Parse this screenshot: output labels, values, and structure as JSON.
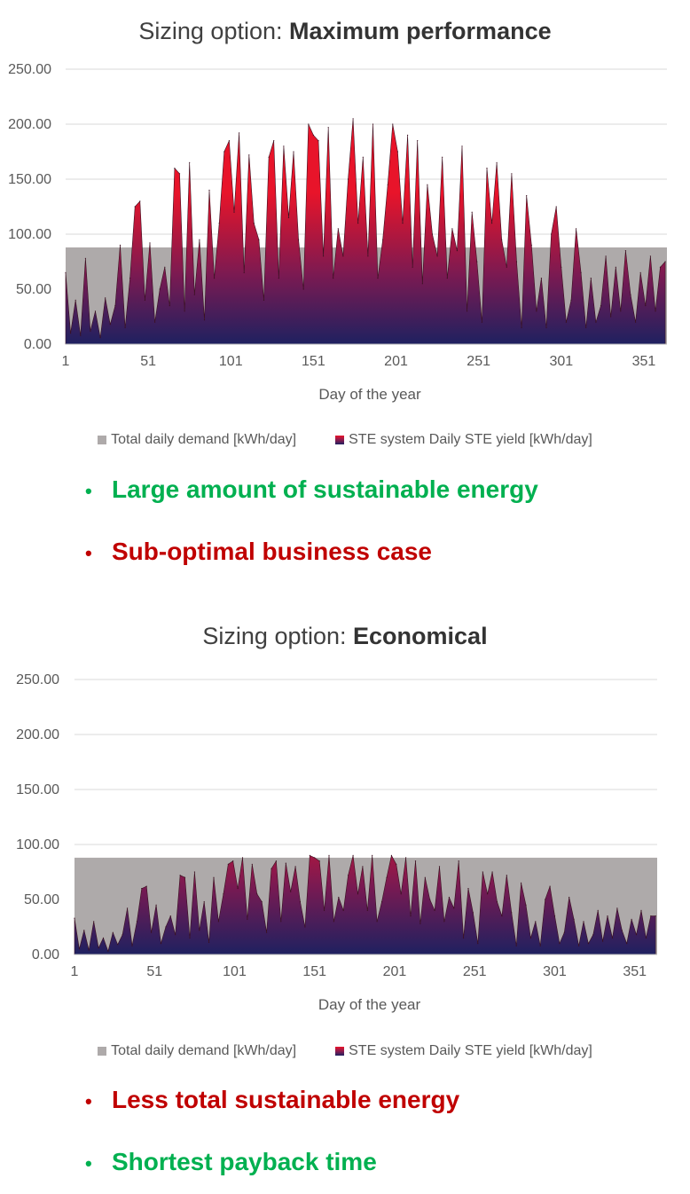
{
  "chart_data": [
    {
      "type": "area",
      "title": "Sizing option: Maximum performance",
      "title_prefix": "Sizing option:",
      "title_bold": "Maximum performance",
      "xlabel": "Day of the year",
      "ylabel": "",
      "ylim": [
        0,
        250
      ],
      "xlim": [
        1,
        365
      ],
      "yticks": [
        "250.00",
        "200.00",
        "150.00",
        "100.00",
        "50.00",
        "0.00"
      ],
      "xticks": [
        "1",
        "51",
        "101",
        "151",
        "201",
        "251",
        "301",
        "351"
      ],
      "grid": true,
      "legend_position": "bottom",
      "series": [
        {
          "name": "Total daily demand [kWh/day]",
          "color": "#aeaaaa",
          "constant": 88
        },
        {
          "name": "STE system Daily STE yield [kWh/day]",
          "color_top": "#e8142a",
          "color_bottom": "#1f2160",
          "x": [
            1,
            4,
            7,
            10,
            13,
            16,
            19,
            22,
            25,
            28,
            31,
            34,
            37,
            40,
            43,
            46,
            49,
            52,
            55,
            58,
            61,
            64,
            67,
            70,
            73,
            76,
            79,
            82,
            85,
            88,
            91,
            94,
            97,
            100,
            103,
            106,
            109,
            112,
            115,
            118,
            121,
            124,
            127,
            130,
            133,
            136,
            139,
            142,
            145,
            148,
            151,
            154,
            157,
            160,
            163,
            166,
            169,
            172,
            175,
            178,
            181,
            184,
            187,
            190,
            193,
            196,
            199,
            202,
            205,
            208,
            211,
            214,
            217,
            220,
            223,
            226,
            229,
            232,
            235,
            238,
            241,
            244,
            247,
            250,
            253,
            256,
            259,
            262,
            265,
            268,
            271,
            274,
            277,
            280,
            283,
            286,
            289,
            292,
            295,
            298,
            301,
            304,
            307,
            310,
            313,
            316,
            319,
            322,
            325,
            328,
            331,
            334,
            337,
            340,
            343,
            346,
            349,
            352,
            355,
            358,
            361,
            364
          ],
          "values": [
            65,
            10,
            40,
            8,
            78,
            12,
            30,
            6,
            42,
            18,
            35,
            90,
            15,
            60,
            125,
            130,
            40,
            92,
            20,
            50,
            70,
            35,
            160,
            155,
            30,
            165,
            45,
            95,
            22,
            140,
            60,
            110,
            175,
            185,
            120,
            192,
            65,
            172,
            110,
            95,
            40,
            170,
            185,
            60,
            180,
            115,
            175,
            95,
            50,
            200,
            190,
            185,
            80,
            197,
            60,
            105,
            80,
            150,
            205,
            110,
            170,
            80,
            200,
            60,
            95,
            145,
            200,
            175,
            110,
            190,
            70,
            185,
            55,
            145,
            100,
            80,
            170,
            60,
            105,
            85,
            180,
            30,
            120,
            75,
            20,
            160,
            110,
            165,
            95,
            70,
            155,
            75,
            15,
            135,
            90,
            30,
            60,
            15,
            100,
            125,
            70,
            20,
            40,
            105,
            65,
            15,
            60,
            20,
            35,
            80,
            25,
            70,
            30,
            85,
            45,
            20,
            65,
            35,
            80,
            30,
            70,
            75
          ]
        }
      ]
    },
    {
      "type": "area",
      "title": "Sizing option: Economical",
      "title_prefix": "Sizing option:",
      "title_bold": "Economical",
      "xlabel": "Day of the year",
      "ylabel": "",
      "ylim": [
        0,
        250
      ],
      "xlim": [
        1,
        365
      ],
      "yticks": [
        "250.00",
        "200.00",
        "150.00",
        "100.00",
        "50.00",
        "0.00"
      ],
      "xticks": [
        "1",
        "51",
        "101",
        "151",
        "201",
        "251",
        "301",
        "351"
      ],
      "grid": true,
      "legend_position": "bottom",
      "series": [
        {
          "name": "Total daily demand [kWh/day]",
          "color": "#aeaaaa",
          "constant": 88
        },
        {
          "name": "STE system Daily STE yield [kWh/day]",
          "color_top": "#e8142a",
          "color_bottom": "#1f2160",
          "x": [
            1,
            4,
            7,
            10,
            13,
            16,
            19,
            22,
            25,
            28,
            31,
            34,
            37,
            40,
            43,
            46,
            49,
            52,
            55,
            58,
            61,
            64,
            67,
            70,
            73,
            76,
            79,
            82,
            85,
            88,
            91,
            94,
            97,
            100,
            103,
            106,
            109,
            112,
            115,
            118,
            121,
            124,
            127,
            130,
            133,
            136,
            139,
            142,
            145,
            148,
            151,
            154,
            157,
            160,
            163,
            166,
            169,
            172,
            175,
            178,
            181,
            184,
            187,
            190,
            193,
            196,
            199,
            202,
            205,
            208,
            211,
            214,
            217,
            220,
            223,
            226,
            229,
            232,
            235,
            238,
            241,
            244,
            247,
            250,
            253,
            256,
            259,
            262,
            265,
            268,
            271,
            274,
            277,
            280,
            283,
            286,
            289,
            292,
            295,
            298,
            301,
            304,
            307,
            310,
            313,
            316,
            319,
            322,
            325,
            328,
            331,
            334,
            337,
            340,
            343,
            346,
            349,
            352,
            355,
            358,
            361,
            364
          ],
          "values": [
            33,
            5,
            22,
            4,
            30,
            6,
            15,
            3,
            20,
            9,
            18,
            42,
            8,
            30,
            60,
            62,
            20,
            45,
            10,
            25,
            35,
            18,
            72,
            70,
            15,
            75,
            22,
            48,
            11,
            70,
            30,
            55,
            82,
            85,
            60,
            88,
            32,
            82,
            55,
            48,
            20,
            78,
            85,
            30,
            83,
            57,
            80,
            48,
            25,
            90,
            88,
            85,
            40,
            90,
            30,
            52,
            40,
            72,
            90,
            55,
            80,
            40,
            90,
            30,
            48,
            70,
            90,
            82,
            55,
            88,
            35,
            85,
            28,
            70,
            50,
            40,
            80,
            30,
            52,
            42,
            85,
            15,
            60,
            38,
            10,
            75,
            55,
            75,
            48,
            35,
            72,
            38,
            8,
            65,
            45,
            15,
            30,
            8,
            50,
            62,
            35,
            10,
            20,
            52,
            32,
            8,
            30,
            10,
            18,
            40,
            12,
            35,
            15,
            42,
            22,
            10,
            32,
            18,
            40,
            15,
            35,
            35
          ]
        }
      ]
    }
  ],
  "bullets_1": [
    {
      "text": "Large amount of sustainable energy",
      "tone": "green"
    },
    {
      "text": "Sub-optimal business case",
      "tone": "red"
    }
  ],
  "bullets_2": [
    {
      "text": "Less total sustainable energy",
      "tone": "red"
    },
    {
      "text": "Shortest payback time",
      "tone": "green"
    }
  ],
  "colors": {
    "green": "#00b050",
    "red": "#c00000",
    "demand": "#aeaaaa",
    "yield_top": "#e8142a",
    "yield_bottom": "#1f2160"
  },
  "bullet_glyph": "•"
}
